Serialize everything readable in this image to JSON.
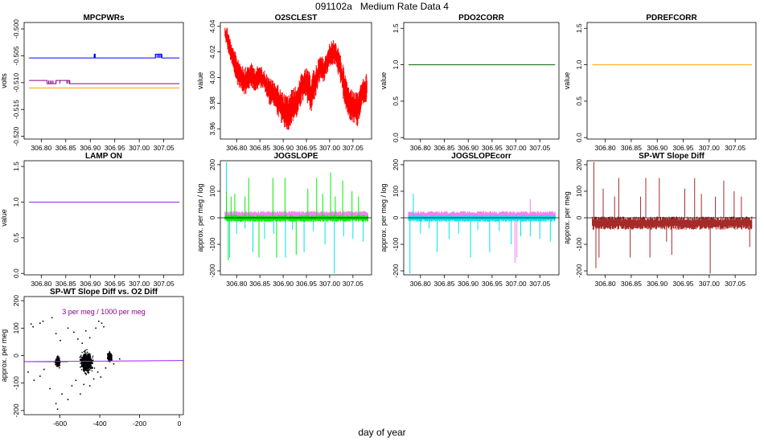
{
  "page": {
    "title": "091102a   Medium Rate Data 4",
    "xlabel": "day of year"
  },
  "chart_data": [
    {
      "id": "mpcpwrs",
      "type": "line",
      "title": "MPCPWRs",
      "ylabel": "volts",
      "xlim": [
        306.765,
        307.09
      ],
      "ylim": [
        -0.5205,
        -0.4988
      ],
      "xticks": [
        306.8,
        306.85,
        306.9,
        306.95,
        307.0,
        307.05
      ],
      "xticklabels": [
        "306.80",
        "306.85",
        "306.90",
        "306.95",
        "307.00",
        "307.05"
      ],
      "yticks": [
        -0.52,
        -0.515,
        -0.51,
        -0.505,
        -0.5
      ],
      "yticklabels": [
        "-0.520",
        "-0.515",
        "-0.510",
        "-0.505",
        "-0.500"
      ],
      "series": [
        {
          "color": "#0000ff",
          "type": "step",
          "x": [
            306.775,
            306.908,
            306.908,
            306.91,
            306.91,
            307.033,
            307.033,
            307.046,
            307.046,
            307.082
          ],
          "y": [
            -0.5054,
            -0.5054,
            -0.5047,
            -0.5047,
            -0.5054,
            -0.5054,
            -0.5047,
            -0.5047,
            -0.5054,
            -0.5054
          ],
          "spikes": [
            306.908,
            306.909,
            306.91,
            307.033,
            307.036,
            307.039,
            307.041,
            307.044,
            307.046
          ]
        },
        {
          "color": "#8b008b",
          "type": "step",
          "x": [
            306.775,
            306.812,
            306.812,
            306.83,
            306.83,
            306.858,
            306.858,
            307.082
          ],
          "y": [
            -0.5096,
            -0.5096,
            -0.5102,
            -0.5102,
            -0.5096,
            -0.5096,
            -0.5102,
            -0.5102
          ],
          "spikes": [
            306.815,
            306.818,
            306.821,
            306.824,
            306.83,
            306.838,
            306.852,
            306.855,
            306.858
          ]
        },
        {
          "color": "#ffa500",
          "type": "line",
          "x": [
            306.775,
            307.082
          ],
          "y": [
            -0.511,
            -0.511
          ]
        }
      ]
    },
    {
      "id": "o2sclest",
      "type": "line",
      "title": "O2SCLEST",
      "ylabel": "value",
      "xlim": [
        306.765,
        307.09
      ],
      "ylim": [
        3.952,
        4.043
      ],
      "xticks": [
        306.8,
        306.85,
        306.9,
        306.95,
        307.0,
        307.05
      ],
      "xticklabels": [
        "306.80",
        "306.85",
        "306.90",
        "306.95",
        "307.00",
        "307.05"
      ],
      "yticks": [
        3.96,
        3.98,
        4.0,
        4.02,
        4.04
      ],
      "yticklabels": [
        "3.96",
        "3.98",
        "4.00",
        "4.02",
        "4.04"
      ],
      "series": [
        {
          "color": "#ff0000",
          "type": "band",
          "x": [
            306.775,
            306.78,
            306.79,
            306.8,
            306.81,
            306.82,
            306.83,
            306.84,
            306.85,
            306.86,
            306.87,
            306.88,
            306.89,
            306.9,
            306.91,
            306.92,
            306.93,
            306.94,
            306.95,
            306.96,
            306.97,
            306.98,
            306.99,
            307.0,
            307.01,
            307.02,
            307.03,
            307.04,
            307.05,
            307.06,
            307.07,
            307.08
          ],
          "low": [
            4.03,
            4.022,
            4.008,
            3.995,
            3.99,
            3.985,
            3.993,
            3.988,
            3.992,
            3.99,
            3.978,
            3.978,
            3.968,
            3.962,
            3.958,
            3.965,
            3.968,
            3.98,
            3.982,
            3.972,
            3.985,
            3.998,
            3.996,
            4.008,
            4.01,
            4.0,
            3.982,
            3.968,
            3.965,
            3.962,
            3.978,
            3.98
          ],
          "high": [
            4.04,
            4.04,
            4.025,
            4.018,
            4.012,
            4.008,
            4.012,
            4.008,
            4.01,
            4.006,
            4.0,
            3.998,
            3.994,
            3.988,
            3.986,
            3.992,
            3.994,
            4.004,
            4.008,
            4.002,
            4.01,
            4.018,
            4.016,
            4.028,
            4.03,
            4.022,
            4.008,
            3.994,
            3.99,
            3.988,
            3.998,
            4.004
          ]
        }
      ]
    },
    {
      "id": "pdo2corr",
      "type": "line",
      "title": "PDO2CORR",
      "ylabel": "value",
      "xlim": [
        306.765,
        307.09
      ],
      "ylim": [
        -0.02,
        1.58
      ],
      "xticks": [
        306.8,
        306.85,
        306.9,
        306.95,
        307.0,
        307.05
      ],
      "xticklabels": [
        "306.80",
        "306.85",
        "306.90",
        "306.95",
        "307.00",
        "307.05"
      ],
      "yticks": [
        0.0,
        0.5,
        1.0,
        1.5
      ],
      "yticklabels": [
        "0.0",
        "0.5",
        "1.0",
        "1.5"
      ],
      "series": [
        {
          "color": "#006400",
          "type": "line",
          "x": [
            306.775,
            307.082
          ],
          "y": [
            1.0,
            1.0
          ]
        }
      ]
    },
    {
      "id": "pdrefcorr",
      "type": "line",
      "title": "PDREFCORR",
      "ylabel": "value",
      "xlim": [
        306.765,
        307.09
      ],
      "ylim": [
        -0.02,
        1.58
      ],
      "xticks": [
        306.8,
        306.85,
        306.9,
        306.95,
        307.0,
        307.05
      ],
      "xticklabels": [
        "306.80",
        "306.85",
        "306.90",
        "306.95",
        "307.00",
        "307.05"
      ],
      "yticks": [
        0.0,
        0.5,
        1.0,
        1.5
      ],
      "yticklabels": [
        "0.0",
        "0.5",
        "1.0",
        "1.5"
      ],
      "series": [
        {
          "color": "#ffa500",
          "type": "line",
          "x": [
            306.775,
            307.082
          ],
          "y": [
            1.0,
            1.0
          ]
        }
      ]
    },
    {
      "id": "lampon",
      "type": "line",
      "title": "LAMP ON",
      "ylabel": "value",
      "xlim": [
        306.765,
        307.09
      ],
      "ylim": [
        -0.02,
        1.58
      ],
      "xticks": [
        306.8,
        306.85,
        306.9,
        306.95,
        307.0,
        307.05
      ],
      "xticklabels": [
        "306.80",
        "306.85",
        "306.90",
        "306.95",
        "307.00",
        "307.05"
      ],
      "yticks": [
        0.0,
        0.5,
        1.0,
        1.5
      ],
      "yticklabels": [
        "0.0",
        "0.5",
        "1.0",
        "1.5"
      ],
      "series": [
        {
          "color": "#a020f0",
          "type": "line",
          "x": [
            306.775,
            307.082
          ],
          "y": [
            1.0,
            1.0
          ]
        }
      ]
    },
    {
      "id": "jogslope",
      "type": "line",
      "title": "JOGSLOPE",
      "ylabel": "approx. per meg / log",
      "xlim": [
        306.765,
        307.09
      ],
      "ylim": [
        -215,
        215
      ],
      "xticks": [
        306.8,
        306.85,
        306.9,
        306.95,
        307.0,
        307.05
      ],
      "xticklabels": [
        "306.80",
        "306.85",
        "306.90",
        "306.95",
        "307.00",
        "307.05"
      ],
      "yticks": [
        -200,
        -100,
        0,
        100,
        200
      ],
      "yticklabels": [
        "-200",
        "-100",
        "0",
        "100",
        "200"
      ],
      "hline": 0,
      "series": [
        {
          "color": "#ee82ee",
          "type": "band",
          "x": [
            306.775,
            307.082
          ],
          "low": [
            -5,
            -5
          ],
          "high": [
            25,
            25
          ]
        },
        {
          "color": "#00e5ee",
          "type": "spikes",
          "x": [
            306.778,
            306.785,
            306.8,
            306.818,
            306.835,
            306.86,
            306.88,
            306.905,
            306.92,
            306.945,
            306.965,
            306.99,
            307.01,
            307.03,
            307.05,
            307.072
          ],
          "y": [
            210,
            -150,
            -60,
            -40,
            -130,
            -80,
            -60,
            -150,
            -45,
            -130,
            -50,
            -100,
            -210,
            -70,
            -80,
            -90
          ]
        },
        {
          "color": "#00ee00",
          "type": "spikes",
          "x": [
            306.778,
            306.782,
            306.788,
            306.796,
            306.818,
            306.826,
            306.848,
            306.878,
            306.886,
            306.904,
            306.928,
            306.953,
            306.972,
            306.985,
            307.002,
            307.012,
            307.028,
            307.048,
            307.062
          ],
          "y": [
            100,
            -160,
            80,
            90,
            80,
            150,
            -150,
            150,
            -150,
            150,
            -140,
            110,
            150,
            90,
            170,
            80,
            140,
            100,
            80
          ]
        },
        {
          "color": "#00ee00",
          "type": "band",
          "x": [
            306.775,
            307.082
          ],
          "low": [
            -15,
            -15
          ],
          "high": [
            10,
            10
          ]
        }
      ]
    },
    {
      "id": "jogslopecorr",
      "type": "line",
      "title": "JOGSLOPEcorr",
      "ylabel": "approx. per meg / log",
      "xlim": [
        306.765,
        307.09
      ],
      "ylim": [
        -215,
        215
      ],
      "xticks": [
        306.8,
        306.85,
        306.9,
        306.95,
        307.0,
        307.05
      ],
      "xticklabels": [
        "306.80",
        "306.85",
        "306.90",
        "306.95",
        "307.00",
        "307.05"
      ],
      "yticks": [
        -200,
        -100,
        0,
        100,
        200
      ],
      "yticklabels": [
        "-200",
        "-100",
        "0",
        "100",
        "200"
      ],
      "hline": 0,
      "series": [
        {
          "color": "#ee82ee",
          "type": "band",
          "x": [
            306.775,
            307.082
          ],
          "low": [
            -5,
            -5
          ],
          "high": [
            25,
            25
          ]
        },
        {
          "color": "#ee82ee",
          "type": "spikes",
          "x": [
            306.998,
            307.002,
            307.03
          ],
          "y": [
            -170,
            -150,
            70
          ]
        },
        {
          "color": "#00e5ee",
          "type": "spikes",
          "x": [
            306.778,
            306.785,
            306.8,
            306.818,
            306.835,
            306.86,
            306.88,
            306.905,
            306.92,
            306.945,
            306.965,
            306.99,
            307.01,
            307.03,
            307.05,
            307.072
          ],
          "y": [
            -210,
            90,
            -60,
            -40,
            -130,
            -80,
            -60,
            -150,
            -45,
            -130,
            -50,
            -100,
            -70,
            -70,
            -80,
            -90
          ]
        },
        {
          "color": "#00e5ee",
          "type": "band",
          "x": [
            306.775,
            307.082
          ],
          "low": [
            -15,
            -15
          ],
          "high": [
            10,
            10
          ]
        }
      ]
    },
    {
      "id": "spwtslope",
      "type": "line",
      "title": "SP-WT Slope Diff",
      "ylabel": "approx. per meg",
      "xlim": [
        306.765,
        307.09
      ],
      "ylim": [
        -215,
        215
      ],
      "xticks": [
        306.8,
        306.85,
        306.9,
        306.95,
        307.0,
        307.05
      ],
      "xticklabels": [
        "306.80",
        "306.85",
        "306.90",
        "306.95",
        "307.00",
        "307.05"
      ],
      "yticks": [
        -200,
        -100,
        0,
        100,
        200
      ],
      "yticklabels": [
        "-200",
        "-100",
        "0",
        "100",
        "200"
      ],
      "hline": 0,
      "series": [
        {
          "color": "#a52a2a",
          "type": "band",
          "x": [
            306.775,
            307.082
          ],
          "low": [
            -45,
            -45
          ],
          "high": [
            5,
            5
          ]
        },
        {
          "color": "#a52a2a",
          "type": "spikes",
          "x": [
            306.778,
            306.782,
            306.788,
            306.796,
            306.818,
            306.826,
            306.848,
            306.868,
            306.878,
            306.886,
            306.904,
            306.918,
            306.928,
            306.953,
            306.972,
            306.985,
            307.002,
            307.012,
            307.028,
            307.048,
            307.062,
            307.078
          ],
          "y": [
            210,
            -190,
            -150,
            110,
            80,
            150,
            -150,
            80,
            150,
            -150,
            150,
            -90,
            -140,
            110,
            150,
            90,
            -210,
            80,
            140,
            100,
            80,
            -110
          ]
        }
      ]
    },
    {
      "id": "spwtvso2",
      "type": "scatter",
      "title": "SP-WT Slope Diff vs. O2 Diff",
      "ylabel": "approx. per meg",
      "annotation": "3 per meg / 1000 per meg",
      "xlim": [
        -780,
        20
      ],
      "ylim": [
        -215,
        215
      ],
      "xticks": [
        -600,
        -400,
        -200,
        0
      ],
      "xticklabels": [
        "-600",
        "-400",
        "-200",
        "0"
      ],
      "yticks": [
        -200,
        -100,
        0,
        100,
        200
      ],
      "yticklabels": [
        "-200",
        "-100",
        "0",
        "100",
        "200"
      ],
      "refline": {
        "color": "#a020f0",
        "x": [
          -780,
          20
        ],
        "y": [
          -22,
          -18
        ]
      },
      "hline": {
        "color": "#00008b",
        "y": -22,
        "x": [
          -780,
          -560
        ]
      },
      "clusters": [
        {
          "cx": -610,
          "cy": -22,
          "rx": 16,
          "ry": 22,
          "n": 220
        },
        {
          "cx": -465,
          "cy": -25,
          "rx": 38,
          "ry": 45,
          "n": 900
        },
        {
          "cx": -350,
          "cy": -5,
          "rx": 15,
          "ry": 22,
          "n": 260
        }
      ],
      "outliers": [
        [
          -745,
          115
        ],
        [
          -735,
          105
        ],
        [
          -700,
          118
        ],
        [
          -685,
          125
        ],
        [
          -640,
          138
        ],
        [
          -620,
          80
        ],
        [
          -598,
          55
        ],
        [
          -560,
          100
        ],
        [
          -530,
          85
        ],
        [
          -510,
          60
        ],
        [
          -488,
          45
        ],
        [
          -470,
          90
        ],
        [
          -450,
          65
        ],
        [
          -420,
          100
        ],
        [
          -405,
          125
        ],
        [
          -390,
          118
        ],
        [
          -380,
          105
        ],
        [
          -760,
          -60
        ],
        [
          -730,
          -90
        ],
        [
          -700,
          -75
        ],
        [
          -680,
          -50
        ],
        [
          -650,
          -120
        ],
        [
          -620,
          -175
        ],
        [
          -612,
          -195
        ],
        [
          -590,
          -140
        ],
        [
          -560,
          -160
        ],
        [
          -540,
          -110
        ],
        [
          -520,
          -90
        ],
        [
          -498,
          -140
        ],
        [
          -480,
          -105
        ],
        [
          -450,
          -110
        ],
        [
          -430,
          -85
        ],
        [
          -410,
          -60
        ],
        [
          -395,
          -78
        ],
        [
          -370,
          -45
        ],
        [
          -330,
          -30
        ],
        [
          -300,
          -12
        ]
      ]
    }
  ]
}
